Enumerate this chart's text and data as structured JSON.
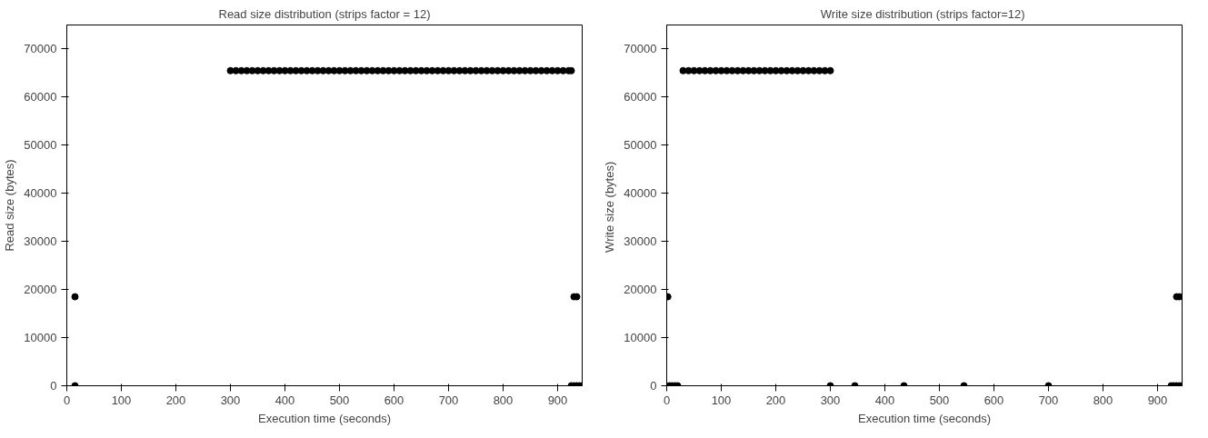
{
  "chart_data": [
    {
      "type": "scatter",
      "title": "Read size distribution (strips factor = 12)",
      "xlabel": "Execution time (seconds)",
      "ylabel": "Read size (bytes)",
      "xlim": [
        0,
        945
      ],
      "ylim": [
        0,
        75000
      ],
      "xticks": [
        0,
        100,
        200,
        300,
        400,
        500,
        600,
        700,
        800,
        900
      ],
      "yticks": [
        0,
        10000,
        20000,
        30000,
        40000,
        50000,
        60000,
        70000
      ],
      "grid": false,
      "marker": "circle",
      "series": [
        {
          "color": "#000000",
          "x": [
            15,
            15,
            300,
            310,
            320,
            330,
            340,
            350,
            360,
            370,
            380,
            390,
            400,
            410,
            420,
            430,
            440,
            450,
            460,
            470,
            480,
            490,
            500,
            510,
            520,
            530,
            540,
            550,
            560,
            570,
            580,
            590,
            600,
            610,
            620,
            630,
            640,
            650,
            660,
            670,
            680,
            690,
            700,
            710,
            720,
            730,
            740,
            750,
            760,
            770,
            780,
            790,
            800,
            810,
            820,
            830,
            840,
            850,
            860,
            870,
            880,
            890,
            900,
            910,
            920,
            925,
            925,
            930,
            935,
            940,
            945,
            930,
            935
          ],
          "values": [
            18500,
            0,
            65500,
            65500,
            65500,
            65500,
            65500,
            65500,
            65500,
            65500,
            65500,
            65500,
            65500,
            65500,
            65500,
            65500,
            65500,
            65500,
            65500,
            65500,
            65500,
            65500,
            65500,
            65500,
            65500,
            65500,
            65500,
            65500,
            65500,
            65500,
            65500,
            65500,
            65500,
            65500,
            65500,
            65500,
            65500,
            65500,
            65500,
            65500,
            65500,
            65500,
            65500,
            65500,
            65500,
            65500,
            65500,
            65500,
            65500,
            65500,
            65500,
            65500,
            65500,
            65500,
            65500,
            65500,
            65500,
            65500,
            65500,
            65500,
            65500,
            65500,
            65500,
            65500,
            65500,
            65500,
            0,
            0,
            0,
            0,
            0,
            18500,
            18500
          ]
        }
      ]
    },
    {
      "type": "scatter",
      "title": "Write  size distribution (strips factor=12)",
      "xlabel": "Execution time (seconds)",
      "ylabel": "Write  size (bytes)",
      "xlim": [
        0,
        945
      ],
      "ylim": [
        0,
        75000
      ],
      "xticks": [
        0,
        100,
        200,
        300,
        400,
        500,
        600,
        700,
        800,
        900
      ],
      "yticks": [
        0,
        10000,
        20000,
        30000,
        40000,
        50000,
        60000,
        70000
      ],
      "grid": false,
      "marker": "circle",
      "series": [
        {
          "color": "#000000",
          "x": [
            2,
            5,
            10,
            15,
            20,
            30,
            40,
            50,
            60,
            70,
            80,
            90,
            100,
            110,
            120,
            130,
            140,
            150,
            160,
            170,
            180,
            190,
            200,
            210,
            220,
            230,
            240,
            250,
            260,
            270,
            280,
            290,
            300,
            300,
            345,
            435,
            545,
            700,
            925,
            930,
            935,
            940,
            945,
            935,
            940
          ],
          "values": [
            18500,
            0,
            0,
            0,
            0,
            65500,
            65500,
            65500,
            65500,
            65500,
            65500,
            65500,
            65500,
            65500,
            65500,
            65500,
            65500,
            65500,
            65500,
            65500,
            65500,
            65500,
            65500,
            65500,
            65500,
            65500,
            65500,
            65500,
            65500,
            65500,
            65500,
            65500,
            65500,
            0,
            0,
            0,
            0,
            0,
            0,
            0,
            0,
            0,
            0,
            18500,
            18500
          ]
        }
      ]
    }
  ]
}
